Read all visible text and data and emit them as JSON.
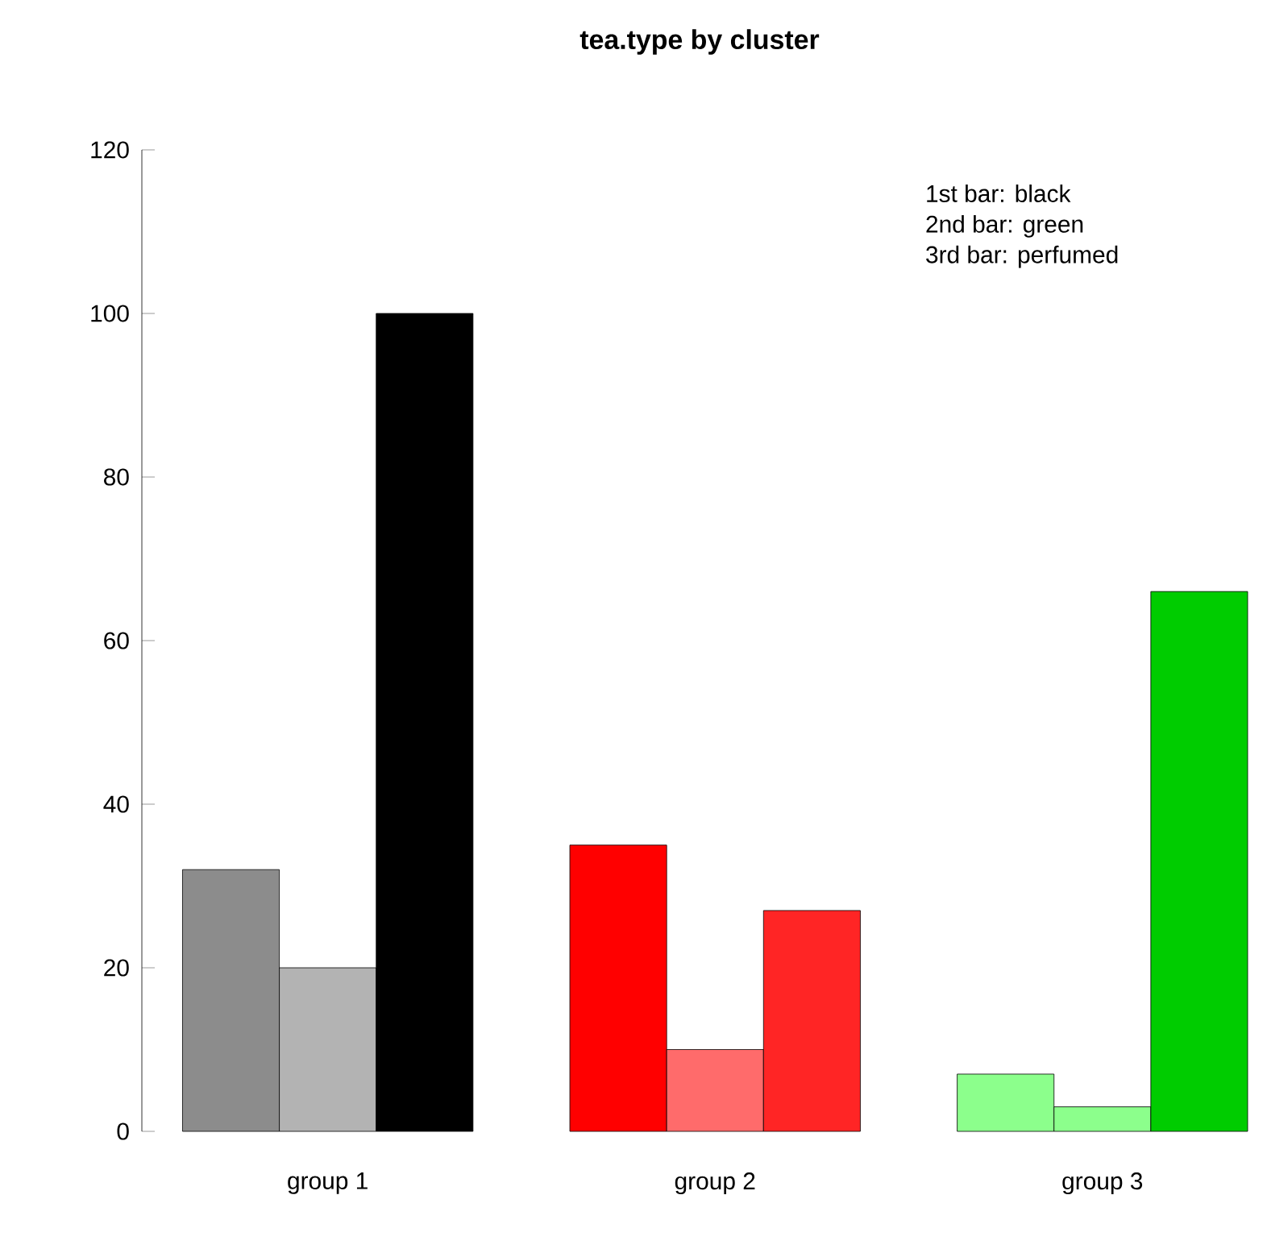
{
  "chart_data": {
    "type": "bar",
    "title": "tea.type by cluster",
    "categories": [
      "group 1",
      "group 2",
      "group 3"
    ],
    "series": [
      {
        "colors": [
          "#8c8c8c",
          "#ff0000",
          "#8cff8c"
        ],
        "values": [
          32,
          35,
          7
        ]
      },
      {
        "colors": [
          "#b3b3b3",
          "#ff6b6b",
          "#8cff8c"
        ],
        "values": [
          20,
          10,
          3
        ]
      },
      {
        "colors": [
          "#000000",
          "#ff2525",
          "#00cc00"
        ],
        "values": [
          100,
          27,
          66
        ]
      }
    ],
    "ylim": [
      0,
      120
    ],
    "yticks": [
      0,
      20,
      40,
      60,
      80,
      100,
      120
    ],
    "grid": false,
    "annotations": [
      "1st bar: black",
      "2nd bar: green",
      "3rd bar: perfumed"
    ]
  }
}
